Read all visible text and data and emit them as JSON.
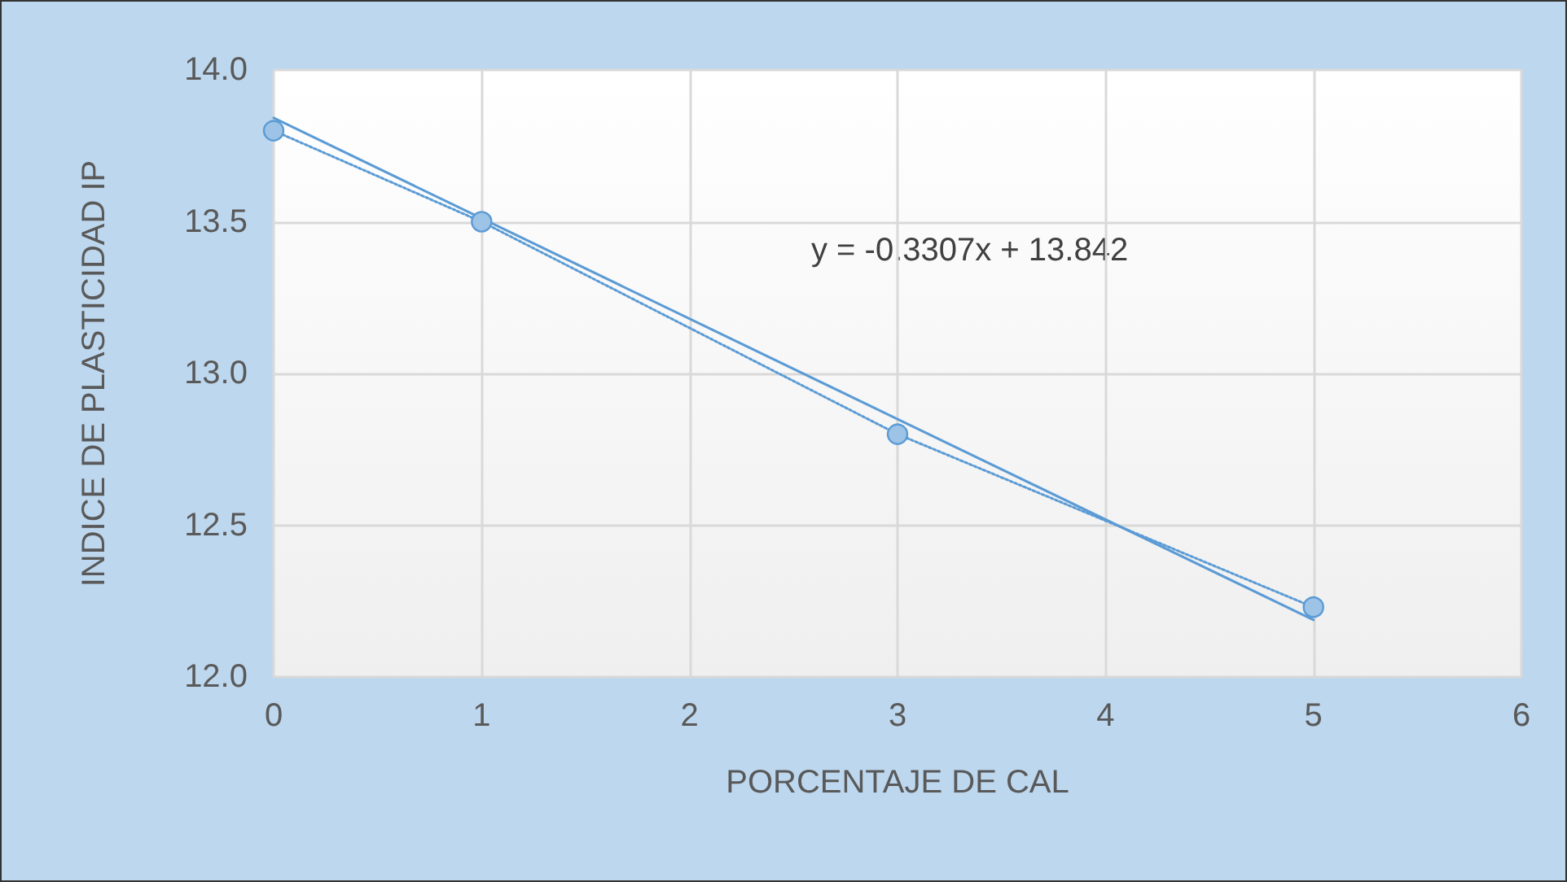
{
  "chart_data": {
    "type": "scatter",
    "xlabel": "PORCENTAJE DE CAL",
    "ylabel": "INDICE DE PLASTICIDAD IP",
    "annotations": [
      "y = -0.3307x + 13.842"
    ],
    "series": [
      {
        "type": "line",
        "color": "#5b9bd5",
        "x": [
          0,
          1,
          3,
          5
        ],
        "values": [
          13.8,
          13.5,
          12.8,
          12.23
        ],
        "marker": "circle",
        "line_style": "dotted"
      },
      {
        "type": "line",
        "color": "#5b9bd5",
        "x": [
          0,
          5
        ],
        "values": [
          13.842,
          12.188
        ],
        "marker": "none",
        "line_style": "solid"
      }
    ],
    "xlim": [
      0,
      6
    ],
    "xticks": [
      0,
      1,
      2,
      3,
      4,
      5,
      6
    ],
    "ylim": [
      12,
      14
    ],
    "yticks": [
      {
        "value": 12,
        "label": "12.0"
      },
      12.5,
      {
        "value": 13,
        "label": "13.0"
      },
      13.5,
      {
        "value": 14,
        "label": "14.0"
      }
    ],
    "grid": true
  }
}
